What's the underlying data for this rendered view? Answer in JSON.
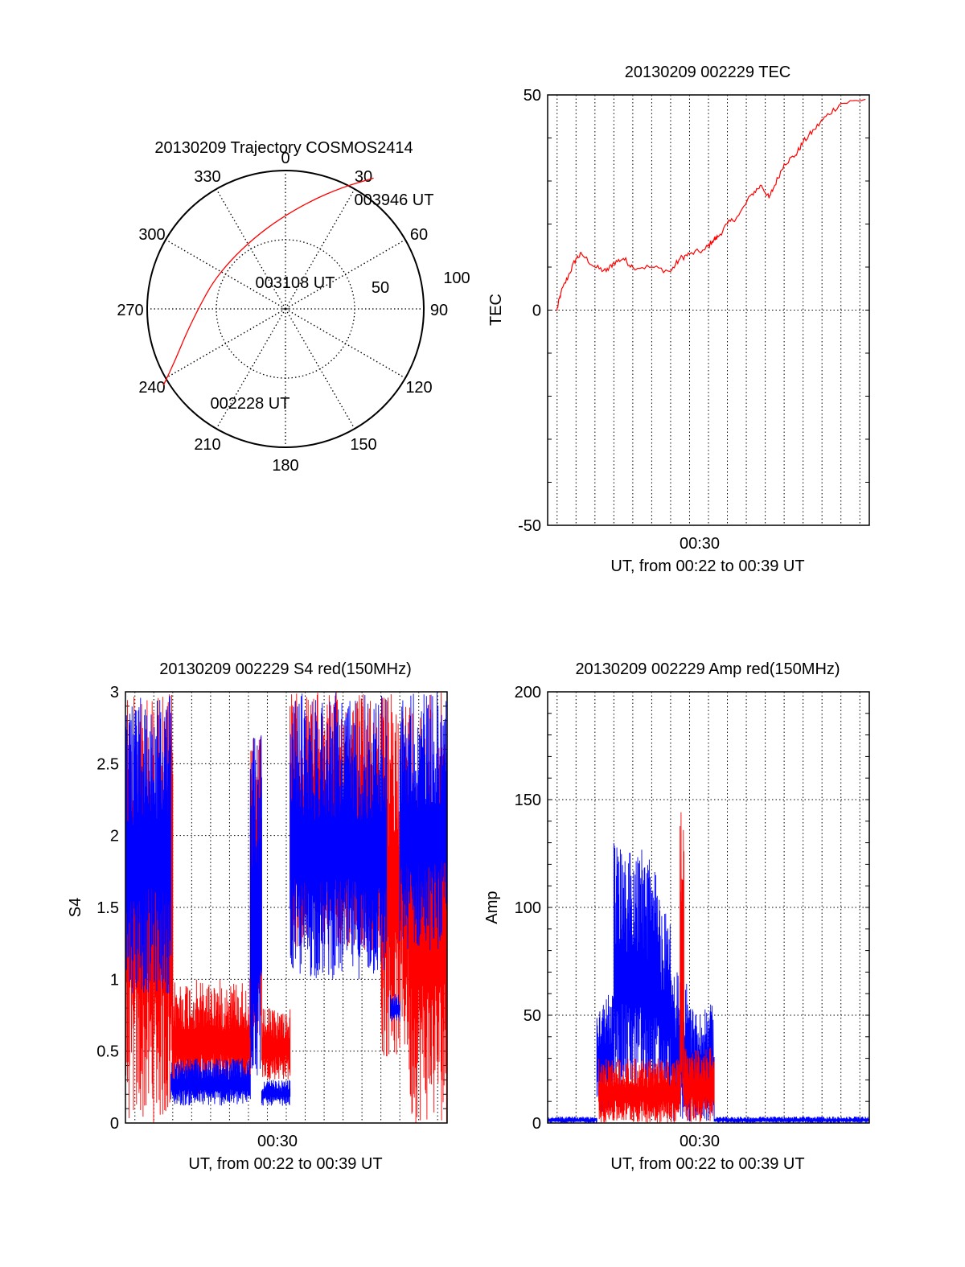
{
  "colors": {
    "red": "#ff0000",
    "blue": "#0000ff",
    "axis": "#000000"
  },
  "chart_data": [
    {
      "id": "polar",
      "type": "polar-trajectory",
      "title": "20130209 Trajectory COSMOS2414",
      "azimuth_labels": [
        "0",
        "30",
        "60",
        "90",
        "120",
        "150",
        "180",
        "210",
        "240",
        "270",
        "300",
        "330"
      ],
      "elevation_rings": [
        0,
        50,
        100
      ],
      "elevation_labels": [
        "50",
        "100"
      ],
      "trajectory": [
        {
          "az": 238,
          "zen": 104
        },
        {
          "az": 245,
          "zen": 88
        },
        {
          "az": 256,
          "zen": 74
        },
        {
          "az": 272,
          "zen": 62
        },
        {
          "az": 290,
          "zen": 56
        },
        {
          "az": 312,
          "zen": 53
        },
        {
          "az": 336,
          "zen": 56
        },
        {
          "az": 356,
          "zen": 65
        },
        {
          "az": 13,
          "zen": 80
        },
        {
          "az": 25,
          "zen": 97
        },
        {
          "az": 34,
          "zen": 114
        }
      ],
      "annotations": [
        {
          "text": "003946 UT",
          "az": 34,
          "zen": 114
        },
        {
          "text": "003108 UT",
          "az": 312,
          "zen": 53
        },
        {
          "text": "002228 UT",
          "az": 238,
          "zen": 104
        }
      ]
    },
    {
      "id": "tec",
      "type": "line",
      "title": "20130209 002229 TEC",
      "ylabel": "TEC",
      "xlabel": "UT, from 00:22 to 00:39 UT",
      "xtick_label": "00:30",
      "xlim_minutes": [
        22.5,
        39.5
      ],
      "ylim": [
        -50,
        50
      ],
      "yticks": [
        -50,
        0,
        50
      ],
      "series": [
        {
          "color": "red",
          "points": [
            [
              22.98,
              -0.2
            ],
            [
              23.2,
              4
            ],
            [
              23.6,
              8
            ],
            [
              24.0,
              12
            ],
            [
              24.3,
              13
            ],
            [
              25,
              10
            ],
            [
              25.6,
              9
            ],
            [
              26,
              11
            ],
            [
              26.5,
              12
            ],
            [
              27,
              10
            ],
            [
              28,
              10
            ],
            [
              29,
              9
            ],
            [
              29.5,
              12
            ],
            [
              30,
              13
            ],
            [
              30.8,
              14
            ],
            [
              31.2,
              16
            ],
            [
              31.5,
              17
            ],
            [
              32,
              20
            ],
            [
              32.6,
              22
            ],
            [
              33.3,
              27
            ],
            [
              33.8,
              29
            ],
            [
              34.2,
              26
            ],
            [
              34.5,
              29
            ],
            [
              35,
              34
            ],
            [
              35.6,
              36
            ],
            [
              36,
              39
            ],
            [
              36.6,
              42
            ],
            [
              37.2,
              45
            ],
            [
              38,
              48
            ],
            [
              39.3,
              49
            ]
          ]
        }
      ]
    },
    {
      "id": "s4",
      "type": "line",
      "title": "20130209 002229 S4 red(150MHz)",
      "ylabel": "S4",
      "xlabel": "UT, from 00:22 to 00:39 UT",
      "xtick_label": "00:30",
      "xlim_minutes": [
        22.5,
        39.5
      ],
      "ylim": [
        0,
        3
      ],
      "yticks": [
        0,
        0.5,
        1,
        1.5,
        2,
        2.5,
        3
      ],
      "ytick_labels": [
        "0",
        "0.5",
        "1",
        "1.5",
        "2",
        "2.5",
        "3"
      ],
      "series": [
        {
          "color": "red",
          "segments": [
            {
              "x0": 22.5,
              "x1": 25.0,
              "min": 0.0,
              "max": 3.0
            },
            {
              "x0": 25.0,
              "x1": 29.1,
              "min": 0.2,
              "max": 1.0
            },
            {
              "x0": 29.1,
              "x1": 29.7,
              "min": 0.5,
              "max": 2.7
            },
            {
              "x0": 29.7,
              "x1": 31.2,
              "min": 0.3,
              "max": 0.8
            },
            {
              "x0": 31.2,
              "x1": 36.0,
              "min": 1.2,
              "max": 3.0
            },
            {
              "x0": 36.0,
              "x1": 37.5,
              "min": 0.45,
              "max": 3.0
            },
            {
              "x0": 37.5,
              "x1": 39.5,
              "min": 0.0,
              "max": 3.0
            }
          ]
        },
        {
          "color": "blue",
          "segments": [
            {
              "x0": 22.5,
              "x1": 24.9,
              "min": 0.9,
              "max": 3.0
            },
            {
              "x0": 24.9,
              "x1": 29.1,
              "min": 0.12,
              "max": 0.45
            },
            {
              "x0": 29.1,
              "x1": 29.7,
              "min": 0.3,
              "max": 2.8
            },
            {
              "x0": 29.7,
              "x1": 31.2,
              "min": 0.12,
              "max": 0.3
            },
            {
              "x0": 31.2,
              "x1": 36.3,
              "min": 1.0,
              "max": 3.0
            },
            {
              "x0": 36.5,
              "x1": 37.0,
              "min": 0.7,
              "max": 0.9
            },
            {
              "x0": 37.0,
              "x1": 39.5,
              "min": 1.2,
              "max": 3.0
            }
          ]
        }
      ]
    },
    {
      "id": "amp",
      "type": "line",
      "title": "20130209 002229 Amp red(150MHz)",
      "ylabel": "Amp",
      "xlabel": "UT, from 00:22 to 00:39 UT",
      "xtick_label": "00:30",
      "xlim_minutes": [
        22.5,
        39.5
      ],
      "ylim": [
        0,
        200
      ],
      "yticks": [
        0,
        50,
        100,
        150,
        200
      ],
      "series": [
        {
          "color": "blue",
          "segments": [
            {
              "x0": 22.5,
              "x1": 25.1,
              "min": 0,
              "max": 3
            },
            {
              "x0": 25.1,
              "x1": 26.0,
              "min": 5,
              "max": 60
            },
            {
              "x0": 26.0,
              "x1": 27.5,
              "min": 15,
              "max": 130
            },
            {
              "x0": 27.5,
              "x1": 28.4,
              "min": 10,
              "max": 125
            },
            {
              "x0": 28.4,
              "x1": 29.0,
              "min": 10,
              "max": 100
            },
            {
              "x0": 29.0,
              "x1": 30.0,
              "min": 0,
              "max": 70
            },
            {
              "x0": 30.0,
              "x1": 31.3,
              "min": 0,
              "max": 55
            },
            {
              "x0": 31.3,
              "x1": 39.5,
              "min": 0,
              "max": 3
            }
          ]
        },
        {
          "color": "red",
          "segments": [
            {
              "x0": 25.2,
              "x1": 29.5,
              "min": 0,
              "max": 30
            },
            {
              "x0": 29.5,
              "x1": 29.7,
              "min": 0,
              "max": 150
            },
            {
              "x0": 29.7,
              "x1": 31.3,
              "min": 0,
              "max": 35
            }
          ]
        }
      ]
    }
  ]
}
